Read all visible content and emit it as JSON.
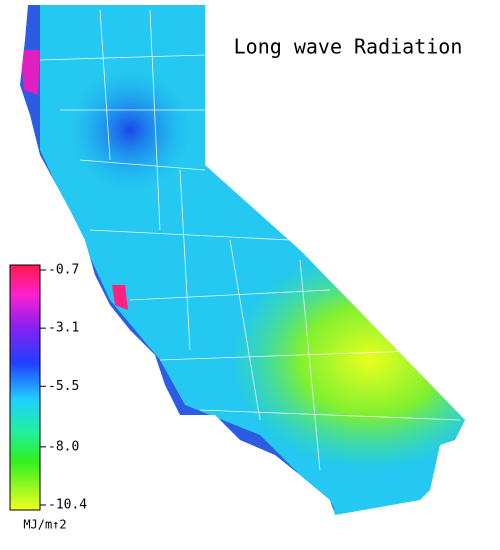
{
  "title": "Long wave Radiation",
  "colorbar": {
    "lim": [
      -10.4,
      -0.7
    ],
    "ticks": [
      -0.7,
      -3.1,
      -5.5,
      {
        "value": -8,
        "label": "-8.0"
      },
      -10.4
    ],
    "unit": "MJ/m↑2"
  }
}
